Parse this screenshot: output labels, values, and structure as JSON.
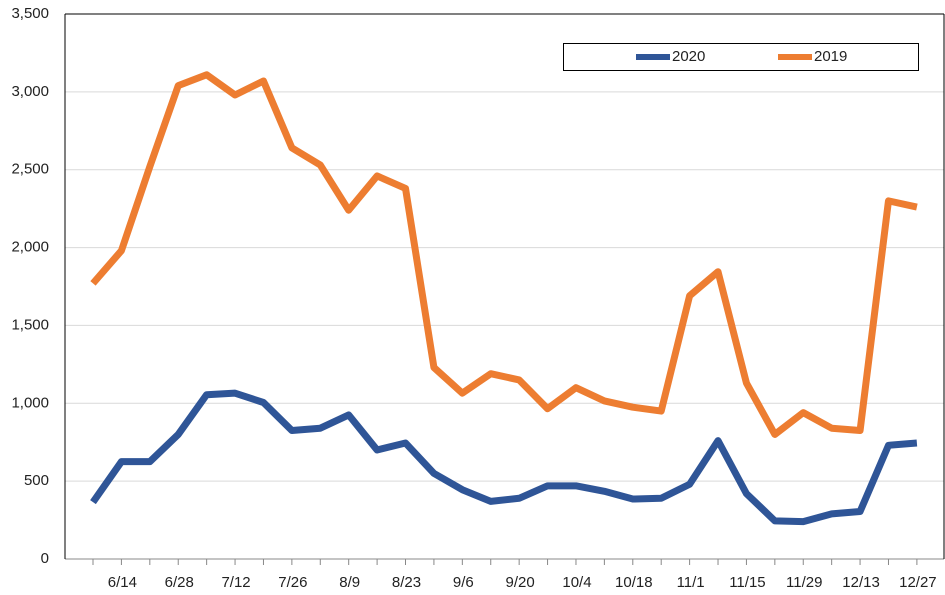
{
  "chart_data": {
    "type": "line",
    "categories": [
      null,
      "6/14",
      null,
      "6/28",
      null,
      "7/12",
      null,
      "7/26",
      null,
      "8/9",
      null,
      "8/23",
      null,
      "9/6",
      null,
      "9/20",
      null,
      "10/4",
      null,
      "10/18",
      null,
      "11/1",
      null,
      "11/15",
      null,
      "11/29",
      null,
      "12/13",
      null,
      "12/27"
    ],
    "series": [
      {
        "name": "2020",
        "color": "#2f5597",
        "values": [
          365,
          625,
          625,
          800,
          1055,
          1065,
          1005,
          825,
          840,
          925,
          700,
          745,
          550,
          445,
          370,
          390,
          470,
          470,
          435,
          385,
          390,
          480,
          760,
          420,
          245,
          240,
          290,
          305,
          730,
          745
        ]
      },
      {
        "name": "2019",
        "color": "#ed7d31",
        "values": [
          1770,
          1980,
          2520,
          3040,
          3110,
          2980,
          3070,
          2640,
          2530,
          2240,
          2460,
          2380,
          1230,
          1065,
          1190,
          1150,
          965,
          1100,
          1015,
          975,
          950,
          1690,
          1845,
          1130,
          800,
          940,
          840,
          825,
          2300,
          2260
        ]
      }
    ],
    "ylim": [
      0,
      3500
    ],
    "yticks": [
      0,
      500,
      {
        "value": 1000,
        "label": "1,000"
      },
      {
        "value": 1500,
        "label": "1,500"
      },
      {
        "value": 2000,
        "label": "2,000"
      },
      {
        "value": 2500,
        "label": "2,500"
      },
      {
        "value": 3000,
        "label": "3,000"
      },
      {
        "value": 3500,
        "label": "3,500"
      }
    ],
    "grid": true,
    "legend": "top-right"
  }
}
